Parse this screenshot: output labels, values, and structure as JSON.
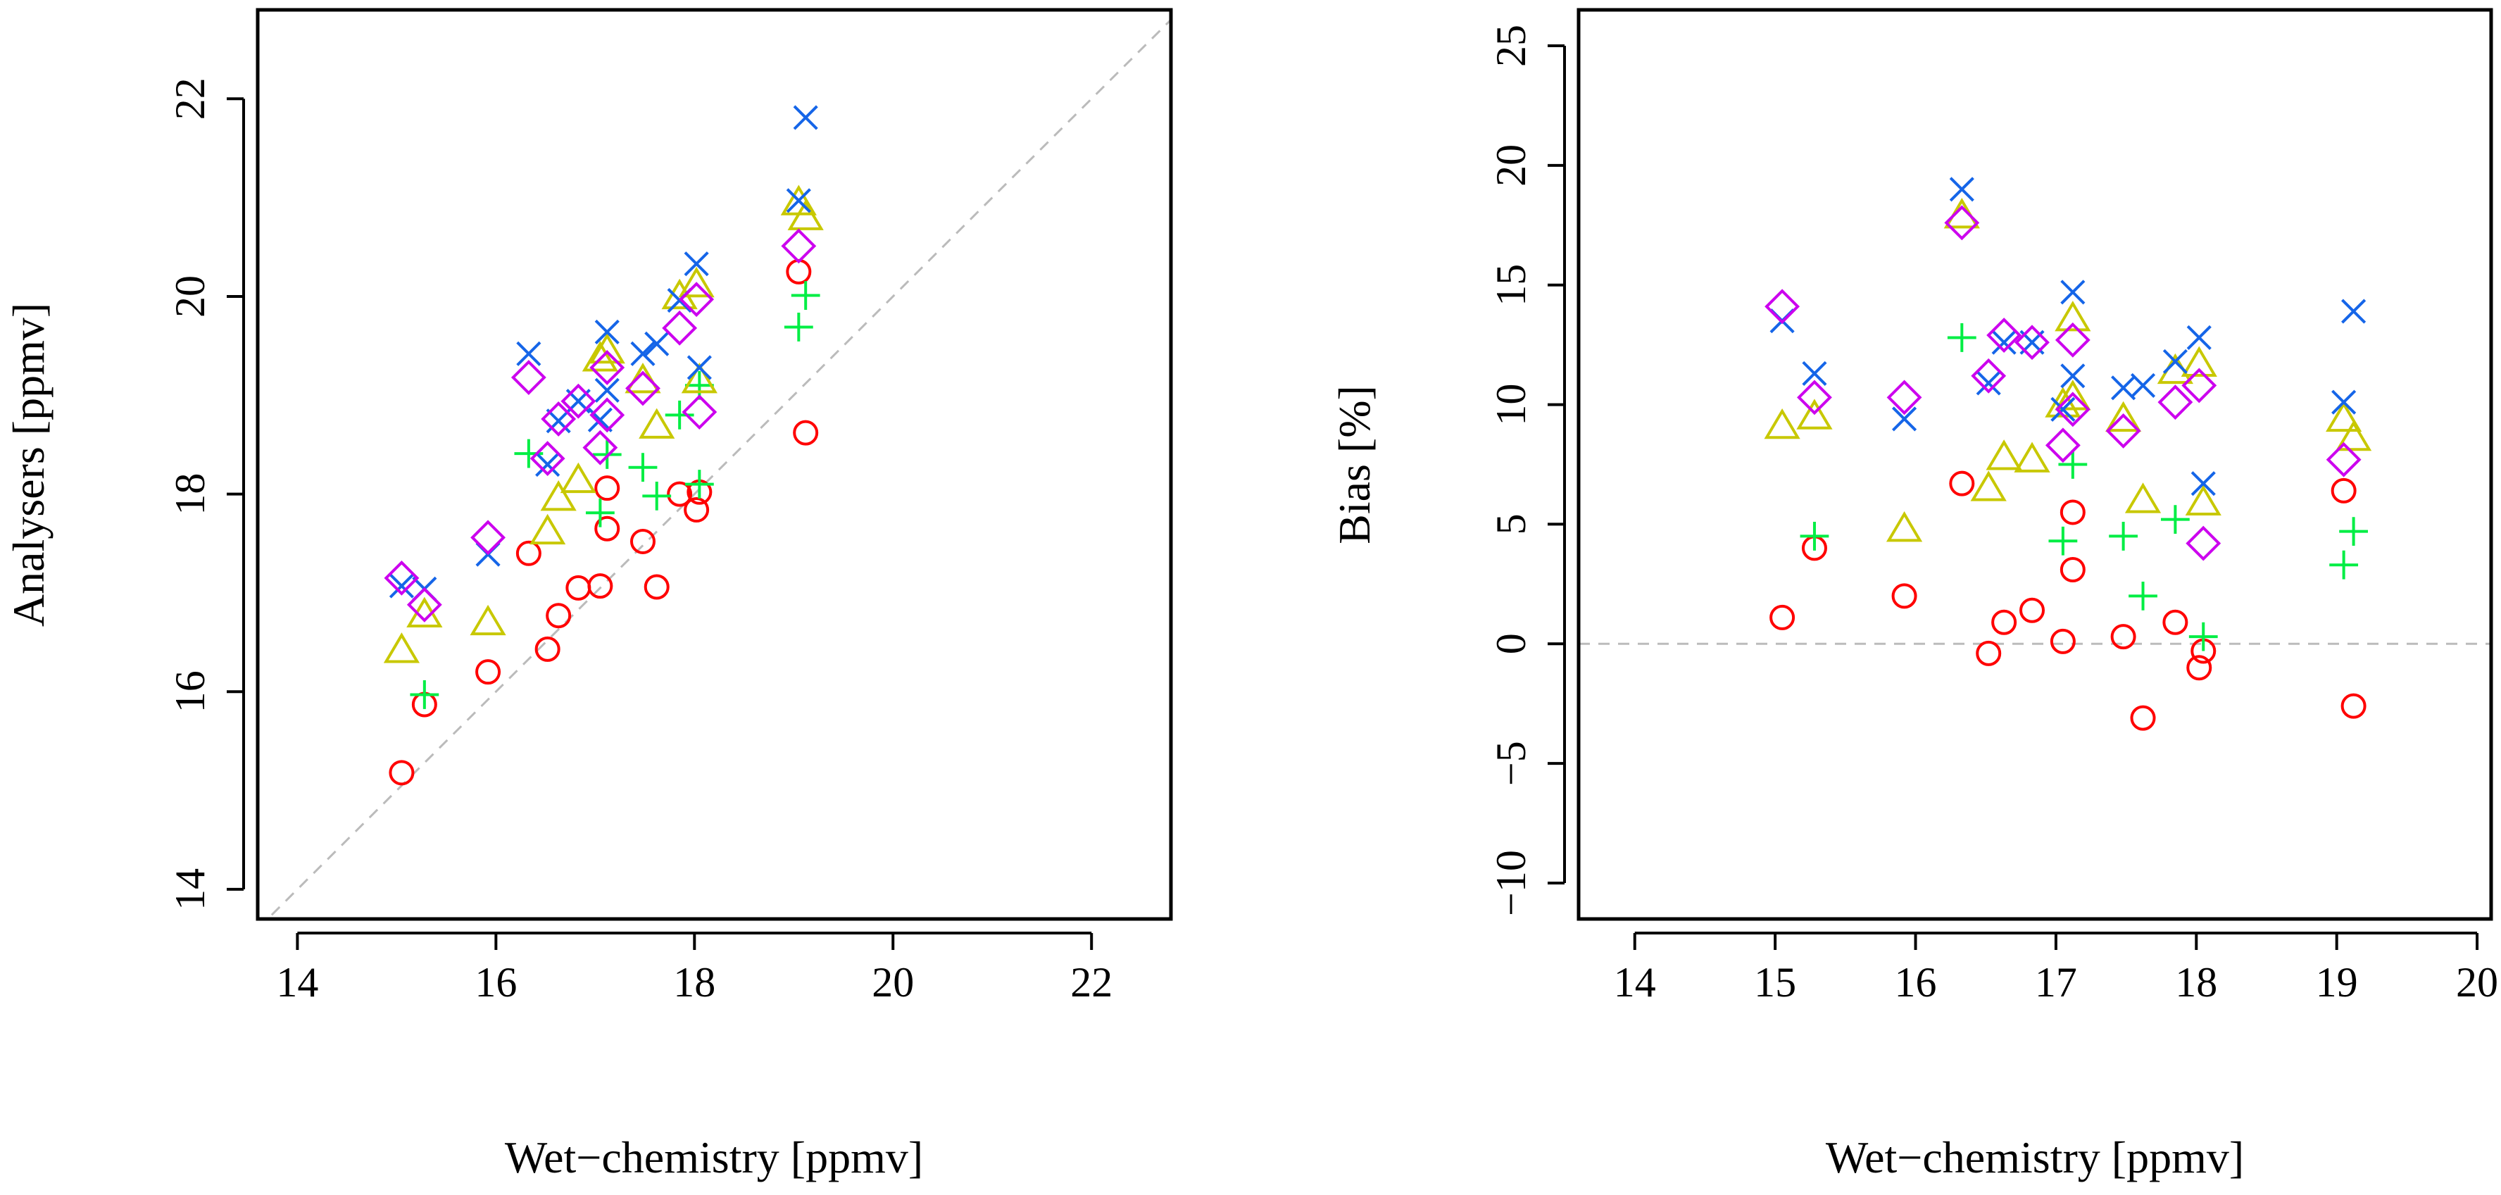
{
  "chart_data": [
    {
      "type": "scatter",
      "title": "",
      "xlabel": "Wet−chemistry [ppmv]",
      "ylabel": "Analysers [ppmv]",
      "xlim": [
        13.6,
        22.8
      ],
      "ylim": [
        13.7,
        22.9
      ],
      "xticks": [
        14,
        16,
        18,
        20,
        22
      ],
      "yticks": [
        14,
        16,
        18,
        20,
        22
      ],
      "reference_line": {
        "type": "identity",
        "style": "dashed",
        "color": "#bbbbbb"
      },
      "series": [
        {
          "name": "circle",
          "marker": "circle",
          "color": "#ff0000",
          "points": [
            [
              15.05,
              15.18
            ],
            [
              15.28,
              15.87
            ],
            [
              15.92,
              16.2
            ],
            [
              16.33,
              17.4
            ],
            [
              16.52,
              16.43
            ],
            [
              16.63,
              16.77
            ],
            [
              16.83,
              17.05
            ],
            [
              17.05,
              17.07
            ],
            [
              17.12,
              18.06
            ],
            [
              17.12,
              17.65
            ],
            [
              17.48,
              17.52
            ],
            [
              17.62,
              17.06
            ],
            [
              17.85,
              18.0
            ],
            [
              18.02,
              17.84
            ],
            [
              18.05,
              18.02
            ],
            [
              19.05,
              20.25
            ],
            [
              19.12,
              18.62
            ]
          ]
        },
        {
          "name": "plus",
          "marker": "plus",
          "color": "#00ee44",
          "points": [
            [
              15.28,
              15.97
            ],
            [
              16.33,
              18.41
            ],
            [
              17.05,
              17.81
            ],
            [
              17.12,
              18.4
            ],
            [
              17.48,
              18.27
            ],
            [
              17.62,
              17.98
            ],
            [
              17.85,
              18.8
            ],
            [
              18.05,
              19.1
            ],
            [
              18.05,
              18.1
            ],
            [
              19.05,
              19.69
            ],
            [
              19.12,
              20.01
            ]
          ]
        },
        {
          "name": "triangle",
          "marker": "triangle",
          "color": "#c8c800",
          "points": [
            [
              15.05,
              16.42
            ],
            [
              15.28,
              16.78
            ],
            [
              15.92,
              16.7
            ],
            [
              16.52,
              17.62
            ],
            [
              16.63,
              17.96
            ],
            [
              16.83,
              18.14
            ],
            [
              17.05,
              19.37
            ],
            [
              17.12,
              19.45
            ],
            [
              17.48,
              19.15
            ],
            [
              17.62,
              18.69
            ],
            [
              17.85,
              20.0
            ],
            [
              18.02,
              20.12
            ],
            [
              18.05,
              19.15
            ],
            [
              19.05,
              20.95
            ],
            [
              19.12,
              20.8
            ]
          ]
        },
        {
          "name": "x",
          "marker": "x",
          "color": "#1565e8",
          "points": [
            [
              15.05,
              17.07
            ],
            [
              15.28,
              17.04
            ],
            [
              15.92,
              17.39
            ],
            [
              16.33,
              19.42
            ],
            [
              16.52,
              18.3
            ],
            [
              16.63,
              18.74
            ],
            [
              16.83,
              18.94
            ],
            [
              17.05,
              18.75
            ],
            [
              17.12,
              19.64
            ],
            [
              17.12,
              19.05
            ],
            [
              17.48,
              19.42
            ],
            [
              17.62,
              19.52
            ],
            [
              17.85,
              19.96
            ],
            [
              18.02,
              20.33
            ],
            [
              18.05,
              19.28
            ],
            [
              19.05,
              20.97
            ],
            [
              19.12,
              21.81
            ]
          ]
        },
        {
          "name": "diamond",
          "marker": "diamond",
          "color": "#cc00ee",
          "points": [
            [
              15.05,
              17.15
            ],
            [
              15.28,
              16.88
            ],
            [
              15.92,
              17.56
            ],
            [
              16.33,
              19.18
            ],
            [
              16.52,
              18.36
            ],
            [
              16.63,
              18.76
            ],
            [
              16.83,
              18.94
            ],
            [
              17.05,
              18.47
            ],
            [
              17.12,
              19.28
            ],
            [
              17.12,
              18.8
            ],
            [
              17.48,
              19.07
            ],
            [
              17.85,
              19.68
            ],
            [
              18.02,
              19.97
            ],
            [
              18.05,
              18.83
            ],
            [
              19.05,
              20.51
            ]
          ]
        }
      ]
    },
    {
      "type": "scatter",
      "title": "",
      "xlabel": "Wet−chemistry [ppmv]",
      "ylabel": "Bias [%]",
      "xlim": [
        13.6,
        20.1
      ],
      "ylim": [
        -11.5,
        26.5
      ],
      "xticks": [
        14,
        15,
        16,
        17,
        18,
        19,
        20
      ],
      "yticks": [
        -10,
        -5,
        0,
        5,
        10,
        15,
        20,
        25
      ],
      "ytick_labels": [
        "−10",
        "−5",
        "0",
        "5",
        "10",
        "15",
        "20",
        "25"
      ],
      "reference_line": {
        "type": "horizontal",
        "y": 0,
        "style": "dashed",
        "color": "#bbbbbb"
      },
      "series": [
        {
          "name": "circle",
          "marker": "circle",
          "color": "#ff0000",
          "points": [
            [
              15.05,
              1.1
            ],
            [
              15.28,
              4.0
            ],
            [
              15.92,
              2.0
            ],
            [
              16.33,
              6.7
            ],
            [
              16.52,
              -0.4
            ],
            [
              16.63,
              0.9
            ],
            [
              16.83,
              1.4
            ],
            [
              17.05,
              0.1
            ],
            [
              17.12,
              5.5
            ],
            [
              17.12,
              3.1
            ],
            [
              17.48,
              0.3
            ],
            [
              17.62,
              -3.1
            ],
            [
              17.85,
              0.9
            ],
            [
              18.02,
              -1.0
            ],
            [
              18.05,
              -0.3
            ],
            [
              19.05,
              6.4
            ],
            [
              19.12,
              -2.6
            ]
          ]
        },
        {
          "name": "plus",
          "marker": "plus",
          "color": "#00ee44",
          "points": [
            [
              15.28,
              4.5
            ],
            [
              16.33,
              12.8
            ],
            [
              17.05,
              4.3
            ],
            [
              17.12,
              7.5
            ],
            [
              17.48,
              4.5
            ],
            [
              17.62,
              2.0
            ],
            [
              17.85,
              5.2
            ],
            [
              18.05,
              0.3
            ],
            [
              19.05,
              3.3
            ],
            [
              19.12,
              4.7
            ]
          ]
        },
        {
          "name": "triangle",
          "marker": "triangle",
          "color": "#c8c800",
          "points": [
            [
              15.05,
              9.1
            ],
            [
              15.28,
              9.5
            ],
            [
              15.92,
              4.8
            ],
            [
              16.33,
              17.9
            ],
            [
              16.52,
              6.5
            ],
            [
              16.63,
              7.8
            ],
            [
              16.83,
              7.7
            ],
            [
              17.05,
              10.0
            ],
            [
              17.12,
              13.6
            ],
            [
              17.12,
              10.3
            ],
            [
              17.48,
              9.4
            ],
            [
              17.62,
              6.0
            ],
            [
              17.85,
              11.4
            ],
            [
              18.02,
              11.7
            ],
            [
              18.05,
              5.9
            ],
            [
              19.05,
              9.4
            ],
            [
              19.12,
              8.6
            ]
          ]
        },
        {
          "name": "x",
          "marker": "x",
          "color": "#1565e8",
          "points": [
            [
              15.05,
              13.5
            ],
            [
              15.28,
              11.3
            ],
            [
              15.92,
              9.4
            ],
            [
              16.33,
              19.0
            ],
            [
              16.52,
              10.9
            ],
            [
              16.63,
              12.6
            ],
            [
              16.83,
              12.6
            ],
            [
              17.05,
              9.8
            ],
            [
              17.12,
              14.7
            ],
            [
              17.12,
              11.2
            ],
            [
              17.48,
              10.7
            ],
            [
              17.62,
              10.8
            ],
            [
              17.85,
              11.8
            ],
            [
              18.02,
              12.8
            ],
            [
              18.05,
              6.7
            ],
            [
              19.05,
              10.1
            ],
            [
              19.12,
              13.9
            ]
          ]
        },
        {
          "name": "diamond",
          "marker": "diamond",
          "color": "#cc00ee",
          "points": [
            [
              15.05,
              14.1
            ],
            [
              15.28,
              10.3
            ],
            [
              15.92,
              10.3
            ],
            [
              16.33,
              17.6
            ],
            [
              16.52,
              11.2
            ],
            [
              16.63,
              12.9
            ],
            [
              16.83,
              12.6
            ],
            [
              17.05,
              8.3
            ],
            [
              17.12,
              12.7
            ],
            [
              17.12,
              9.8
            ],
            [
              17.48,
              8.9
            ],
            [
              17.85,
              10.1
            ],
            [
              18.02,
              10.8
            ],
            [
              18.05,
              4.2
            ],
            [
              19.05,
              7.7
            ]
          ]
        }
      ]
    }
  ]
}
